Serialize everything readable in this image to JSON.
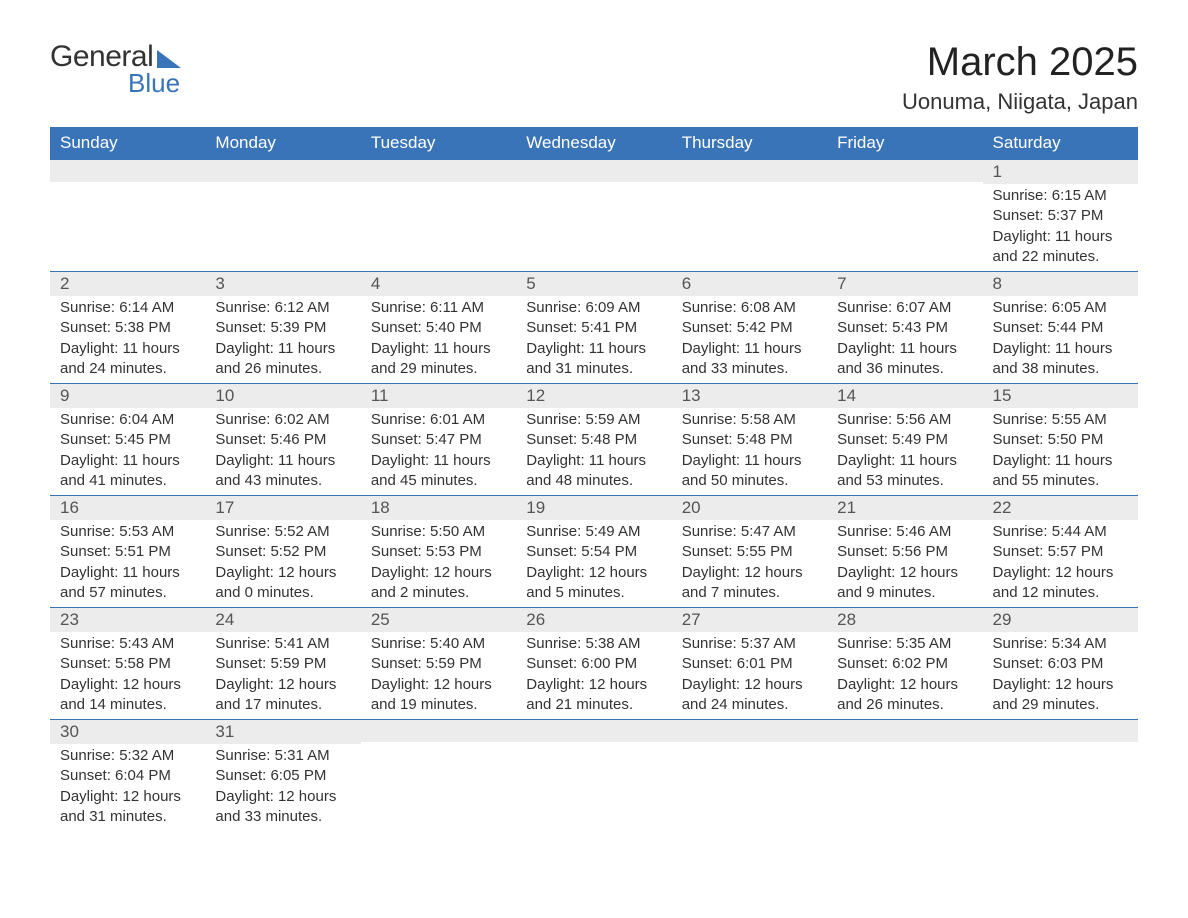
{
  "brand": {
    "general": "General",
    "blue": "Blue"
  },
  "title": "March 2025",
  "location": "Uonuma, Niigata, Japan",
  "colors": {
    "accent": "#3a74b8",
    "header_bg": "#3a74b8",
    "header_text": "#ffffff",
    "daynum_bg": "#ececec",
    "text": "#333333",
    "background": "#ffffff"
  },
  "typography": {
    "title_fontsize": 40,
    "location_fontsize": 22,
    "dayheader_fontsize": 17,
    "daynum_fontsize": 17,
    "cell_fontsize": 15
  },
  "calendar": {
    "type": "table",
    "columns": [
      "Sunday",
      "Monday",
      "Tuesday",
      "Wednesday",
      "Thursday",
      "Friday",
      "Saturday"
    ],
    "weeks": [
      [
        {
          "n": "",
          "sr": "",
          "ss": "",
          "dl": ""
        },
        {
          "n": "",
          "sr": "",
          "ss": "",
          "dl": ""
        },
        {
          "n": "",
          "sr": "",
          "ss": "",
          "dl": ""
        },
        {
          "n": "",
          "sr": "",
          "ss": "",
          "dl": ""
        },
        {
          "n": "",
          "sr": "",
          "ss": "",
          "dl": ""
        },
        {
          "n": "",
          "sr": "",
          "ss": "",
          "dl": ""
        },
        {
          "n": "1",
          "sr": "Sunrise: 6:15 AM",
          "ss": "Sunset: 5:37 PM",
          "dl": "Daylight: 11 hours and 22 minutes."
        }
      ],
      [
        {
          "n": "2",
          "sr": "Sunrise: 6:14 AM",
          "ss": "Sunset: 5:38 PM",
          "dl": "Daylight: 11 hours and 24 minutes."
        },
        {
          "n": "3",
          "sr": "Sunrise: 6:12 AM",
          "ss": "Sunset: 5:39 PM",
          "dl": "Daylight: 11 hours and 26 minutes."
        },
        {
          "n": "4",
          "sr": "Sunrise: 6:11 AM",
          "ss": "Sunset: 5:40 PM",
          "dl": "Daylight: 11 hours and 29 minutes."
        },
        {
          "n": "5",
          "sr": "Sunrise: 6:09 AM",
          "ss": "Sunset: 5:41 PM",
          "dl": "Daylight: 11 hours and 31 minutes."
        },
        {
          "n": "6",
          "sr": "Sunrise: 6:08 AM",
          "ss": "Sunset: 5:42 PM",
          "dl": "Daylight: 11 hours and 33 minutes."
        },
        {
          "n": "7",
          "sr": "Sunrise: 6:07 AM",
          "ss": "Sunset: 5:43 PM",
          "dl": "Daylight: 11 hours and 36 minutes."
        },
        {
          "n": "8",
          "sr": "Sunrise: 6:05 AM",
          "ss": "Sunset: 5:44 PM",
          "dl": "Daylight: 11 hours and 38 minutes."
        }
      ],
      [
        {
          "n": "9",
          "sr": "Sunrise: 6:04 AM",
          "ss": "Sunset: 5:45 PM",
          "dl": "Daylight: 11 hours and 41 minutes."
        },
        {
          "n": "10",
          "sr": "Sunrise: 6:02 AM",
          "ss": "Sunset: 5:46 PM",
          "dl": "Daylight: 11 hours and 43 minutes."
        },
        {
          "n": "11",
          "sr": "Sunrise: 6:01 AM",
          "ss": "Sunset: 5:47 PM",
          "dl": "Daylight: 11 hours and 45 minutes."
        },
        {
          "n": "12",
          "sr": "Sunrise: 5:59 AM",
          "ss": "Sunset: 5:48 PM",
          "dl": "Daylight: 11 hours and 48 minutes."
        },
        {
          "n": "13",
          "sr": "Sunrise: 5:58 AM",
          "ss": "Sunset: 5:48 PM",
          "dl": "Daylight: 11 hours and 50 minutes."
        },
        {
          "n": "14",
          "sr": "Sunrise: 5:56 AM",
          "ss": "Sunset: 5:49 PM",
          "dl": "Daylight: 11 hours and 53 minutes."
        },
        {
          "n": "15",
          "sr": "Sunrise: 5:55 AM",
          "ss": "Sunset: 5:50 PM",
          "dl": "Daylight: 11 hours and 55 minutes."
        }
      ],
      [
        {
          "n": "16",
          "sr": "Sunrise: 5:53 AM",
          "ss": "Sunset: 5:51 PM",
          "dl": "Daylight: 11 hours and 57 minutes."
        },
        {
          "n": "17",
          "sr": "Sunrise: 5:52 AM",
          "ss": "Sunset: 5:52 PM",
          "dl": "Daylight: 12 hours and 0 minutes."
        },
        {
          "n": "18",
          "sr": "Sunrise: 5:50 AM",
          "ss": "Sunset: 5:53 PM",
          "dl": "Daylight: 12 hours and 2 minutes."
        },
        {
          "n": "19",
          "sr": "Sunrise: 5:49 AM",
          "ss": "Sunset: 5:54 PM",
          "dl": "Daylight: 12 hours and 5 minutes."
        },
        {
          "n": "20",
          "sr": "Sunrise: 5:47 AM",
          "ss": "Sunset: 5:55 PM",
          "dl": "Daylight: 12 hours and 7 minutes."
        },
        {
          "n": "21",
          "sr": "Sunrise: 5:46 AM",
          "ss": "Sunset: 5:56 PM",
          "dl": "Daylight: 12 hours and 9 minutes."
        },
        {
          "n": "22",
          "sr": "Sunrise: 5:44 AM",
          "ss": "Sunset: 5:57 PM",
          "dl": "Daylight: 12 hours and 12 minutes."
        }
      ],
      [
        {
          "n": "23",
          "sr": "Sunrise: 5:43 AM",
          "ss": "Sunset: 5:58 PM",
          "dl": "Daylight: 12 hours and 14 minutes."
        },
        {
          "n": "24",
          "sr": "Sunrise: 5:41 AM",
          "ss": "Sunset: 5:59 PM",
          "dl": "Daylight: 12 hours and 17 minutes."
        },
        {
          "n": "25",
          "sr": "Sunrise: 5:40 AM",
          "ss": "Sunset: 5:59 PM",
          "dl": "Daylight: 12 hours and 19 minutes."
        },
        {
          "n": "26",
          "sr": "Sunrise: 5:38 AM",
          "ss": "Sunset: 6:00 PM",
          "dl": "Daylight: 12 hours and 21 minutes."
        },
        {
          "n": "27",
          "sr": "Sunrise: 5:37 AM",
          "ss": "Sunset: 6:01 PM",
          "dl": "Daylight: 12 hours and 24 minutes."
        },
        {
          "n": "28",
          "sr": "Sunrise: 5:35 AM",
          "ss": "Sunset: 6:02 PM",
          "dl": "Daylight: 12 hours and 26 minutes."
        },
        {
          "n": "29",
          "sr": "Sunrise: 5:34 AM",
          "ss": "Sunset: 6:03 PM",
          "dl": "Daylight: 12 hours and 29 minutes."
        }
      ],
      [
        {
          "n": "30",
          "sr": "Sunrise: 5:32 AM",
          "ss": "Sunset: 6:04 PM",
          "dl": "Daylight: 12 hours and 31 minutes."
        },
        {
          "n": "31",
          "sr": "Sunrise: 5:31 AM",
          "ss": "Sunset: 6:05 PM",
          "dl": "Daylight: 12 hours and 33 minutes."
        },
        {
          "n": "",
          "sr": "",
          "ss": "",
          "dl": ""
        },
        {
          "n": "",
          "sr": "",
          "ss": "",
          "dl": ""
        },
        {
          "n": "",
          "sr": "",
          "ss": "",
          "dl": ""
        },
        {
          "n": "",
          "sr": "",
          "ss": "",
          "dl": ""
        },
        {
          "n": "",
          "sr": "",
          "ss": "",
          "dl": ""
        }
      ]
    ]
  }
}
